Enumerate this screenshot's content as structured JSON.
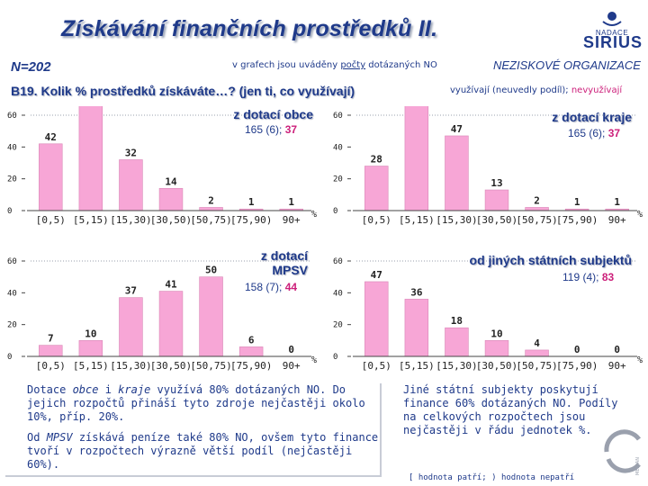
{
  "header": {
    "title": "Získávání finančních prostředků II.",
    "logo_sub": "NADACE",
    "logo_main": "SIRIUS",
    "n_label": "N=202",
    "note_before": "v grafech jsou uváděny ",
    "note_underlined": "počty",
    "note_after": " dotázaných NO",
    "org_label": "NEZISKOVÉ ORGANIZACE",
    "question": "B19. Kolik % prostředků získáváte…? (jen ti, co využívají)",
    "legend_part1": "využívají (neuvedly podíl); ",
    "legend_part2": "nevyužívají"
  },
  "chart_data": [
    {
      "type": "bar",
      "title": "z dotací obce",
      "count_main": "165 (6); ",
      "count_pink": "37",
      "categories": [
        "[0,5)",
        "[5,15)",
        "[15,30)",
        "[30,50)",
        "[50,75)",
        "[75,90)",
        "90+"
      ],
      "values": [
        42,
        67,
        32,
        14,
        2,
        1,
        1
      ],
      "ylim": [
        0,
        60
      ],
      "yticks": [
        0,
        20,
        40,
        60
      ],
      "unit": "%"
    },
    {
      "type": "bar",
      "title": "z dotací kraje",
      "count_main": "165 (6); ",
      "count_pink": "37",
      "categories": [
        "[0,5)",
        "[5,15)",
        "[15,30)",
        "[30,50)",
        "[50,75)",
        "[75,90)",
        "90+"
      ],
      "values": [
        28,
        67,
        47,
        13,
        2,
        1,
        1
      ],
      "ylim": [
        0,
        60
      ],
      "yticks": [
        0,
        20,
        40,
        60
      ],
      "unit": "%"
    },
    {
      "type": "bar",
      "title": "z dotací MPSV",
      "count_main": "158 (7); ",
      "count_pink": "44",
      "categories": [
        "[0,5)",
        "[5,15)",
        "[15,30)",
        "[30,50)",
        "[50,75)",
        "[75,90)",
        "90+"
      ],
      "values": [
        7,
        10,
        37,
        41,
        50,
        6,
        0
      ],
      "ylim": [
        0,
        60
      ],
      "yticks": [
        0,
        20,
        40,
        60
      ],
      "unit": "%"
    },
    {
      "type": "bar",
      "title": "od jiných státních subjektů",
      "count_main": "119 (4); ",
      "count_pink": "83",
      "categories": [
        "[0,5)",
        "[5,15)",
        "[15,30)",
        "[30,50)",
        "[50,75)",
        "[75,90)",
        "90+"
      ],
      "values": [
        47,
        36,
        18,
        10,
        4,
        0,
        0
      ],
      "ylim": [
        0,
        60
      ],
      "yticks": [
        0,
        20,
        40,
        60
      ],
      "unit": "%"
    }
  ],
  "left_text": {
    "p1_a": "Dotace ",
    "p1_b": "obce",
    "p1_c": " i ",
    "p1_d": "kraje",
    "p1_e": " využívá 80% dotázaných NO. Do jejich rozpočtů přináší tyto zdroje nejčastěji okolo 10%, příp. 20%.",
    "p2_a": "Od ",
    "p2_b": "MPSV",
    "p2_c": " získává peníze také 80% NO, ovšem tyto finance tvoří v rozpočtech výrazně větší podíl (nejčastěji 60%)."
  },
  "right_text": "Jiné státní subjekty poskytují finance 60% dotázaných NO. Podíly na celkových rozpočtech jsou nejčastěji v řádu jednotek %.",
  "footer": "[ hodnota patří; ) hodnota nepatří",
  "median_logo": "MEDIAN",
  "colors": {
    "bar": "#f7a6d6",
    "bar_stroke": "#d986b6",
    "text": "#1f3a8a",
    "pink": "#cc1f7a"
  }
}
